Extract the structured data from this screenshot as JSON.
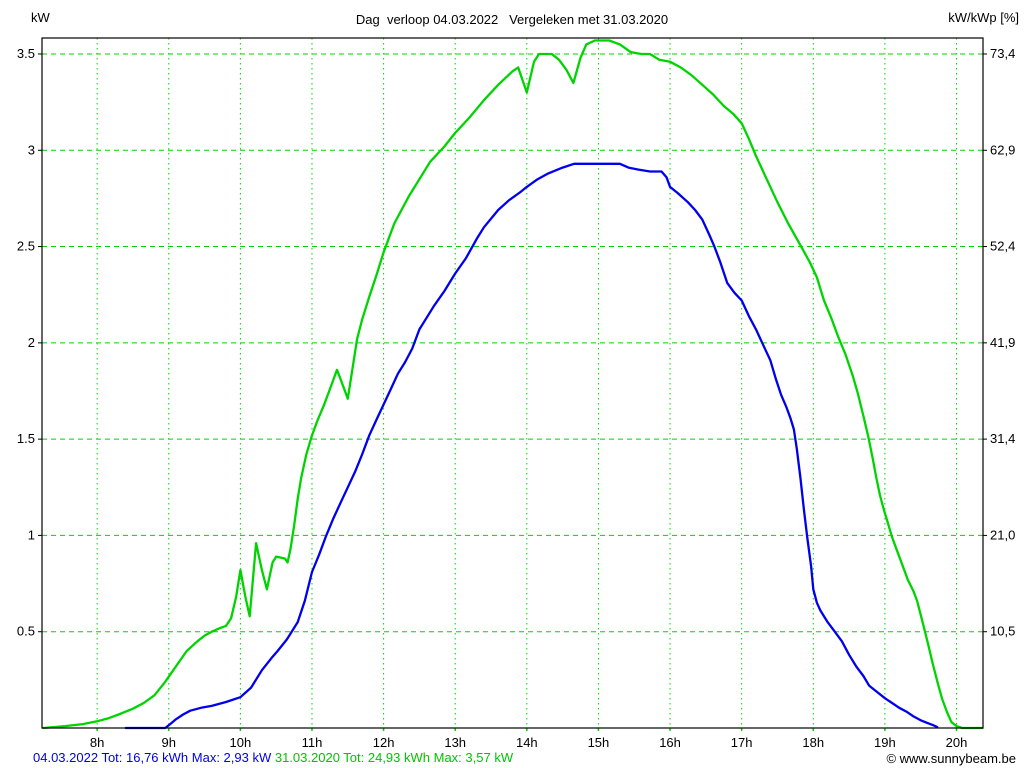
{
  "title": "Dag  verloop 04.03.2022   Vergeleken met 31.03.2020",
  "axis_left_title": "kW",
  "axis_right_title": "kW/kWp [%]",
  "footer": {
    "series_2022_summary": "04.03.2022 Tot: 16,76 kWh Max: 2,93 kW",
    "series_2020_summary": "31.03.2020 Tot: 24,93 kWh Max: 3,57 kW",
    "copyright": "© www.sunnybeam.be"
  },
  "colors": {
    "grid": "#00d400",
    "series_2022": "#0000ee",
    "series_2020": "#00d400",
    "frame": "#000000"
  },
  "chart_data": {
    "type": "line",
    "title": "Dag  verloop 04.03.2022   Vergeleken met 31.03.2020",
    "ylabel_left": "kW",
    "ylabel_right": "kW/kWp [%]",
    "grid": true,
    "x_axis": {
      "unit": "hour of day",
      "min": 7.23,
      "max": 20.37,
      "ticks": [
        8,
        9,
        10,
        11,
        12,
        13,
        14,
        15,
        16,
        17,
        18,
        19,
        20
      ],
      "labels": [
        "8h",
        "9h",
        "10h",
        "11h",
        "12h",
        "13h",
        "14h",
        "15h",
        "16h",
        "17h",
        "18h",
        "19h",
        "20h"
      ]
    },
    "y_axis_left": {
      "unit": "kW",
      "min": 0,
      "max": 3.583,
      "gridline_values": [
        3.5,
        3.0,
        2.5,
        2.0,
        1.5,
        1.0,
        0.5
      ],
      "labels": [
        "3.5",
        "3",
        "2.5",
        "2",
        "1.5",
        "1",
        "0.5"
      ]
    },
    "y_axis_right": {
      "unit": "kW/kWp [%]",
      "labels": [
        "73,4",
        "62,9",
        "52,4",
        "41,9",
        "31,4",
        "21,0",
        "10,5"
      ]
    },
    "series": [
      {
        "name": "04.03.2022",
        "color_key": "series_2022",
        "total": "16,76 kWh",
        "max": "2,93 kW",
        "points": [
          [
            8.4,
            0.0
          ],
          [
            8.95,
            0.0
          ],
          [
            9.02,
            0.02
          ],
          [
            9.1,
            0.045
          ],
          [
            9.2,
            0.07
          ],
          [
            9.3,
            0.09
          ],
          [
            9.45,
            0.105
          ],
          [
            9.6,
            0.115
          ],
          [
            9.8,
            0.135
          ],
          [
            10.0,
            0.16
          ],
          [
            10.15,
            0.21
          ],
          [
            10.3,
            0.3
          ],
          [
            10.45,
            0.37
          ],
          [
            10.52,
            0.4
          ],
          [
            10.65,
            0.46
          ],
          [
            10.8,
            0.55
          ],
          [
            10.9,
            0.66
          ],
          [
            11.0,
            0.81
          ],
          [
            11.1,
            0.9
          ],
          [
            11.2,
            1.0
          ],
          [
            11.3,
            1.09
          ],
          [
            11.4,
            1.17
          ],
          [
            11.5,
            1.25
          ],
          [
            11.6,
            1.33
          ],
          [
            11.7,
            1.42
          ],
          [
            11.8,
            1.52
          ],
          [
            11.9,
            1.6
          ],
          [
            12.0,
            1.68
          ],
          [
            12.1,
            1.76
          ],
          [
            12.2,
            1.84
          ],
          [
            12.3,
            1.9
          ],
          [
            12.4,
            1.97
          ],
          [
            12.5,
            2.07
          ],
          [
            12.6,
            2.13
          ],
          [
            12.7,
            2.19
          ],
          [
            12.85,
            2.27
          ],
          [
            13.0,
            2.36
          ],
          [
            13.15,
            2.44
          ],
          [
            13.3,
            2.54
          ],
          [
            13.4,
            2.6
          ],
          [
            13.6,
            2.69
          ],
          [
            13.75,
            2.74
          ],
          [
            13.9,
            2.78
          ],
          [
            14.0,
            2.81
          ],
          [
            14.15,
            2.85
          ],
          [
            14.3,
            2.88
          ],
          [
            14.5,
            2.91
          ],
          [
            14.66,
            2.93
          ],
          [
            15.3,
            2.93
          ],
          [
            15.42,
            2.91
          ],
          [
            15.55,
            2.9
          ],
          [
            15.72,
            2.89
          ],
          [
            15.88,
            2.89
          ],
          [
            15.95,
            2.86
          ],
          [
            16.0,
            2.81
          ],
          [
            16.1,
            2.78
          ],
          [
            16.25,
            2.73
          ],
          [
            16.35,
            2.69
          ],
          [
            16.45,
            2.64
          ],
          [
            16.55,
            2.56
          ],
          [
            16.62,
            2.5
          ],
          [
            16.7,
            2.42
          ],
          [
            16.8,
            2.31
          ],
          [
            16.9,
            2.26
          ],
          [
            17.0,
            2.22
          ],
          [
            17.1,
            2.14
          ],
          [
            17.2,
            2.07
          ],
          [
            17.3,
            1.99
          ],
          [
            17.4,
            1.91
          ],
          [
            17.48,
            1.81
          ],
          [
            17.55,
            1.73
          ],
          [
            17.62,
            1.67
          ],
          [
            17.68,
            1.61
          ],
          [
            17.73,
            1.55
          ],
          [
            17.77,
            1.45
          ],
          [
            17.82,
            1.3
          ],
          [
            17.87,
            1.13
          ],
          [
            17.92,
            0.98
          ],
          [
            17.97,
            0.84
          ],
          [
            18.0,
            0.72
          ],
          [
            18.05,
            0.65
          ],
          [
            18.1,
            0.61
          ],
          [
            18.2,
            0.55
          ],
          [
            18.3,
            0.5
          ],
          [
            18.4,
            0.45
          ],
          [
            18.5,
            0.38
          ],
          [
            18.6,
            0.32
          ],
          [
            18.7,
            0.27
          ],
          [
            18.78,
            0.22
          ],
          [
            18.88,
            0.19
          ],
          [
            19.0,
            0.155
          ],
          [
            19.1,
            0.13
          ],
          [
            19.2,
            0.105
          ],
          [
            19.3,
            0.085
          ],
          [
            19.4,
            0.06
          ],
          [
            19.5,
            0.04
          ],
          [
            19.6,
            0.025
          ],
          [
            19.67,
            0.015
          ],
          [
            19.73,
            0.005
          ]
        ]
      },
      {
        "name": "31.03.2020",
        "color_key": "series_2020",
        "total": "24,93 kWh",
        "max": "3,57 kW",
        "points": [
          [
            7.25,
            0.0
          ],
          [
            7.55,
            0.01
          ],
          [
            7.8,
            0.02
          ],
          [
            8.0,
            0.035
          ],
          [
            8.15,
            0.05
          ],
          [
            8.3,
            0.07
          ],
          [
            8.5,
            0.1
          ],
          [
            8.65,
            0.13
          ],
          [
            8.8,
            0.17
          ],
          [
            8.95,
            0.24
          ],
          [
            9.1,
            0.32
          ],
          [
            9.25,
            0.4
          ],
          [
            9.4,
            0.45
          ],
          [
            9.5,
            0.48
          ],
          [
            9.6,
            0.5
          ],
          [
            9.72,
            0.52
          ],
          [
            9.8,
            0.53
          ],
          [
            9.87,
            0.57
          ],
          [
            9.94,
            0.68
          ],
          [
            10.0,
            0.82
          ],
          [
            10.07,
            0.68
          ],
          [
            10.13,
            0.58
          ],
          [
            10.22,
            0.96
          ],
          [
            10.3,
            0.82
          ],
          [
            10.37,
            0.72
          ],
          [
            10.45,
            0.86
          ],
          [
            10.5,
            0.89
          ],
          [
            10.62,
            0.88
          ],
          [
            10.66,
            0.86
          ],
          [
            10.7,
            0.93
          ],
          [
            10.75,
            1.05
          ],
          [
            10.8,
            1.19
          ],
          [
            10.85,
            1.3
          ],
          [
            10.92,
            1.42
          ],
          [
            11.0,
            1.52
          ],
          [
            11.08,
            1.6
          ],
          [
            11.17,
            1.68
          ],
          [
            11.25,
            1.76
          ],
          [
            11.35,
            1.86
          ],
          [
            11.42,
            1.79
          ],
          [
            11.5,
            1.71
          ],
          [
            11.58,
            1.9
          ],
          [
            11.63,
            2.02
          ],
          [
            11.7,
            2.12
          ],
          [
            11.8,
            2.24
          ],
          [
            11.9,
            2.35
          ],
          [
            12.0,
            2.47
          ],
          [
            12.15,
            2.62
          ],
          [
            12.35,
            2.76
          ],
          [
            12.5,
            2.85
          ],
          [
            12.65,
            2.94
          ],
          [
            12.85,
            3.02
          ],
          [
            13.0,
            3.09
          ],
          [
            13.2,
            3.17
          ],
          [
            13.4,
            3.26
          ],
          [
            13.6,
            3.34
          ],
          [
            13.8,
            3.41
          ],
          [
            13.88,
            3.43
          ],
          [
            14.0,
            3.3
          ],
          [
            14.1,
            3.46
          ],
          [
            14.17,
            3.5
          ],
          [
            14.35,
            3.5
          ],
          [
            14.45,
            3.47
          ],
          [
            14.55,
            3.42
          ],
          [
            14.65,
            3.35
          ],
          [
            14.75,
            3.48
          ],
          [
            14.83,
            3.55
          ],
          [
            14.95,
            3.57
          ],
          [
            15.15,
            3.57
          ],
          [
            15.3,
            3.55
          ],
          [
            15.45,
            3.51
          ],
          [
            15.6,
            3.5
          ],
          [
            15.72,
            3.5
          ],
          [
            15.85,
            3.47
          ],
          [
            16.0,
            3.46
          ],
          [
            16.15,
            3.43
          ],
          [
            16.3,
            3.39
          ],
          [
            16.45,
            3.34
          ],
          [
            16.6,
            3.29
          ],
          [
            16.75,
            3.23
          ],
          [
            16.88,
            3.19
          ],
          [
            17.0,
            3.14
          ],
          [
            17.1,
            3.06
          ],
          [
            17.2,
            2.97
          ],
          [
            17.35,
            2.85
          ],
          [
            17.5,
            2.73
          ],
          [
            17.65,
            2.62
          ],
          [
            17.8,
            2.52
          ],
          [
            17.95,
            2.42
          ],
          [
            18.05,
            2.34
          ],
          [
            18.15,
            2.22
          ],
          [
            18.25,
            2.13
          ],
          [
            18.35,
            2.03
          ],
          [
            18.45,
            1.94
          ],
          [
            18.55,
            1.83
          ],
          [
            18.62,
            1.74
          ],
          [
            18.7,
            1.62
          ],
          [
            18.77,
            1.51
          ],
          [
            18.83,
            1.4
          ],
          [
            18.88,
            1.3
          ],
          [
            18.93,
            1.21
          ],
          [
            18.98,
            1.14
          ],
          [
            19.03,
            1.08
          ],
          [
            19.1,
            0.99
          ],
          [
            19.17,
            0.92
          ],
          [
            19.25,
            0.84
          ],
          [
            19.32,
            0.77
          ],
          [
            19.4,
            0.71
          ],
          [
            19.45,
            0.66
          ],
          [
            19.52,
            0.56
          ],
          [
            19.6,
            0.44
          ],
          [
            19.67,
            0.33
          ],
          [
            19.74,
            0.23
          ],
          [
            19.8,
            0.15
          ],
          [
            19.87,
            0.08
          ],
          [
            19.93,
            0.03
          ],
          [
            20.0,
            0.01
          ],
          [
            20.08,
            0.0
          ],
          [
            20.36,
            0.0
          ]
        ]
      }
    ],
    "legend_position": "bottom-left"
  }
}
